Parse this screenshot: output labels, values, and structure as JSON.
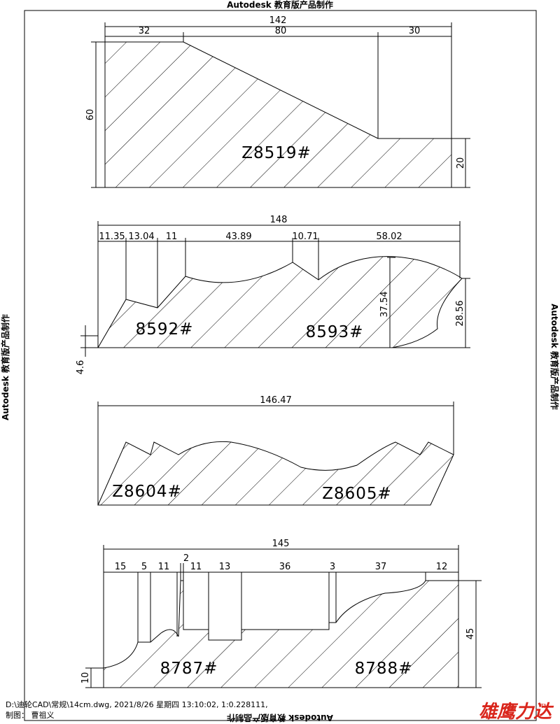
{
  "watermark": "Autodesk 教育版产品制作",
  "profiles": [
    {
      "dimensions": [
        "142",
        "32",
        "80",
        "30",
        "60",
        "20"
      ],
      "labels": [
        "Z8519#"
      ]
    },
    {
      "dimensions": [
        "148",
        "11.35",
        "13.04",
        "11",
        "43.89",
        "10.71",
        "58.02",
        "37.54",
        "28.56",
        "4.6"
      ],
      "labels": [
        "8592#",
        "8593#"
      ]
    },
    {
      "dimensions": [
        "146.47"
      ],
      "labels": [
        "Z8604#",
        "Z8605#"
      ]
    },
    {
      "dimensions": [
        "145",
        "15",
        "5",
        "11",
        "2",
        "11",
        "13",
        "36",
        "3",
        "37",
        "12",
        "45",
        "10"
      ],
      "labels": [
        "8787#",
        "8788#"
      ]
    }
  ],
  "footer": {
    "file": "D:\\迪轮CAD\\常规\\14cm.dwg, 2021/8/26 星期四 13:10:02, 1:0.228111,",
    "author": "制图：  曹祖义"
  },
  "logo": {
    "text": "雄鹰力达",
    "tm": "TM"
  }
}
